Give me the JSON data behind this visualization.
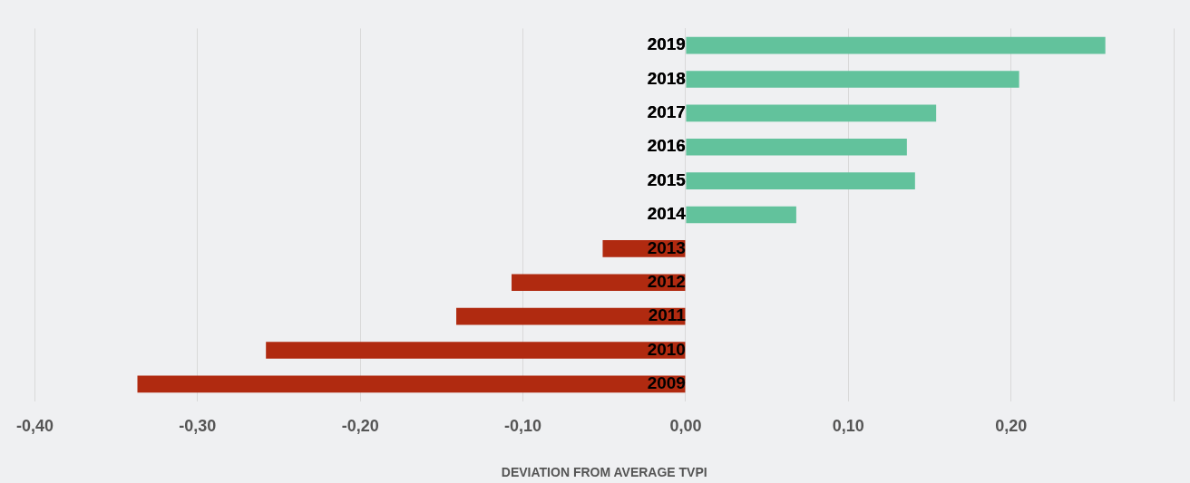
{
  "chart_data": {
    "type": "bar",
    "orientation": "horizontal",
    "xlabel": "DEVIATION FROM AVERAGE TVPI",
    "categories": [
      "2019",
      "2018",
      "2017",
      "2016",
      "2015",
      "2014",
      "2013",
      "2012",
      "2011",
      "2010",
      "2009"
    ],
    "values": [
      0.258,
      0.205,
      0.154,
      0.136,
      0.141,
      0.068,
      -0.051,
      -0.107,
      -0.141,
      -0.258,
      -0.337
    ],
    "colors": [
      "#62c29c",
      "#62c29c",
      "#62c29c",
      "#62c29c",
      "#62c29c",
      "#62c29c",
      "#b02a10",
      "#b02a10",
      "#b02a10",
      "#b02a10",
      "#b02a10"
    ],
    "xlim": [
      -0.4,
      0.3
    ],
    "xticks": [
      {
        "value": -0.4,
        "label": "-0,40"
      },
      {
        "value": -0.3,
        "label": "-0,30"
      },
      {
        "value": -0.2,
        "label": "-0,20"
      },
      {
        "value": -0.1,
        "label": "-0,10"
      },
      {
        "value": 0,
        "label": "0,00"
      },
      {
        "value": 0.1,
        "label": "0,10"
      },
      {
        "value": 0.2,
        "label": "0,20"
      },
      {
        "value": 0.3,
        "label": null
      }
    ],
    "grid": "x",
    "legend": false
  }
}
